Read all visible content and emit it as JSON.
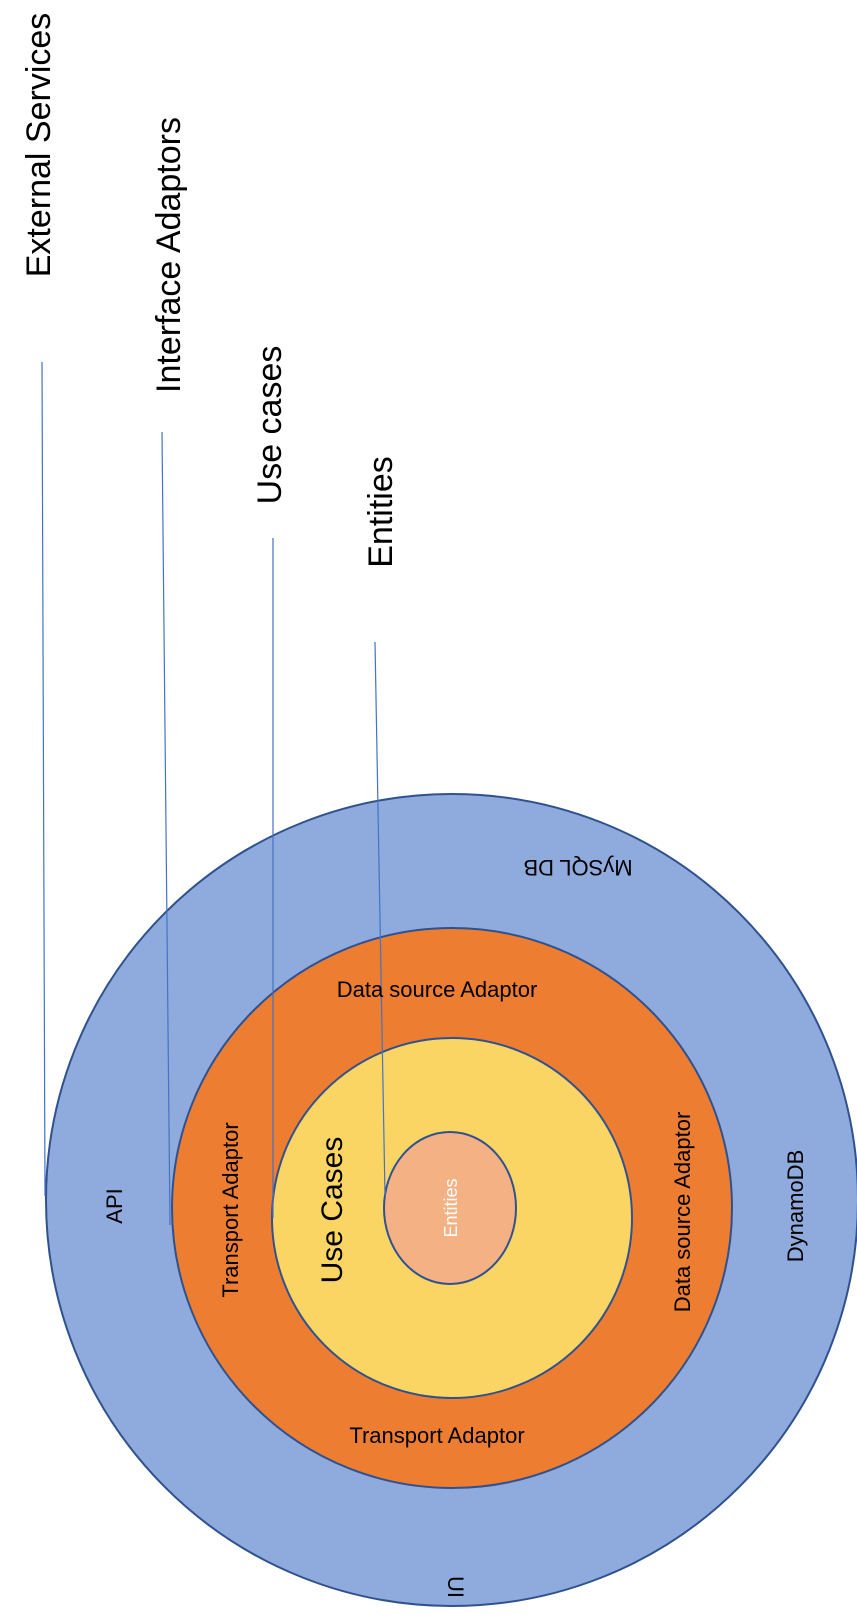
{
  "colors": {
    "external_ring": "#8faadc",
    "adaptor_ring": "#ed7d31",
    "use_case_ring": "#fbd564",
    "entities_core": "#f4b183",
    "ring_border": "#2f528f",
    "leader_line": "#4472c4"
  },
  "layer_labels": {
    "external_services": "External Services",
    "interface_adaptors": "Interface Adaptors",
    "use_cases": "Use cases",
    "entities": "Entities"
  },
  "external_ring": {
    "top": "MySQL DB",
    "left": "API",
    "right": "DynamoDB",
    "bottom": "UI"
  },
  "adaptor_ring": {
    "top": "Data source Adaptor",
    "left": "Transport Adaptor",
    "right": "Data source Adaptor",
    "bottom": "Transport Adaptor"
  },
  "use_case_ring": {
    "label": "Use Cases"
  },
  "core": {
    "label": "Entities"
  }
}
